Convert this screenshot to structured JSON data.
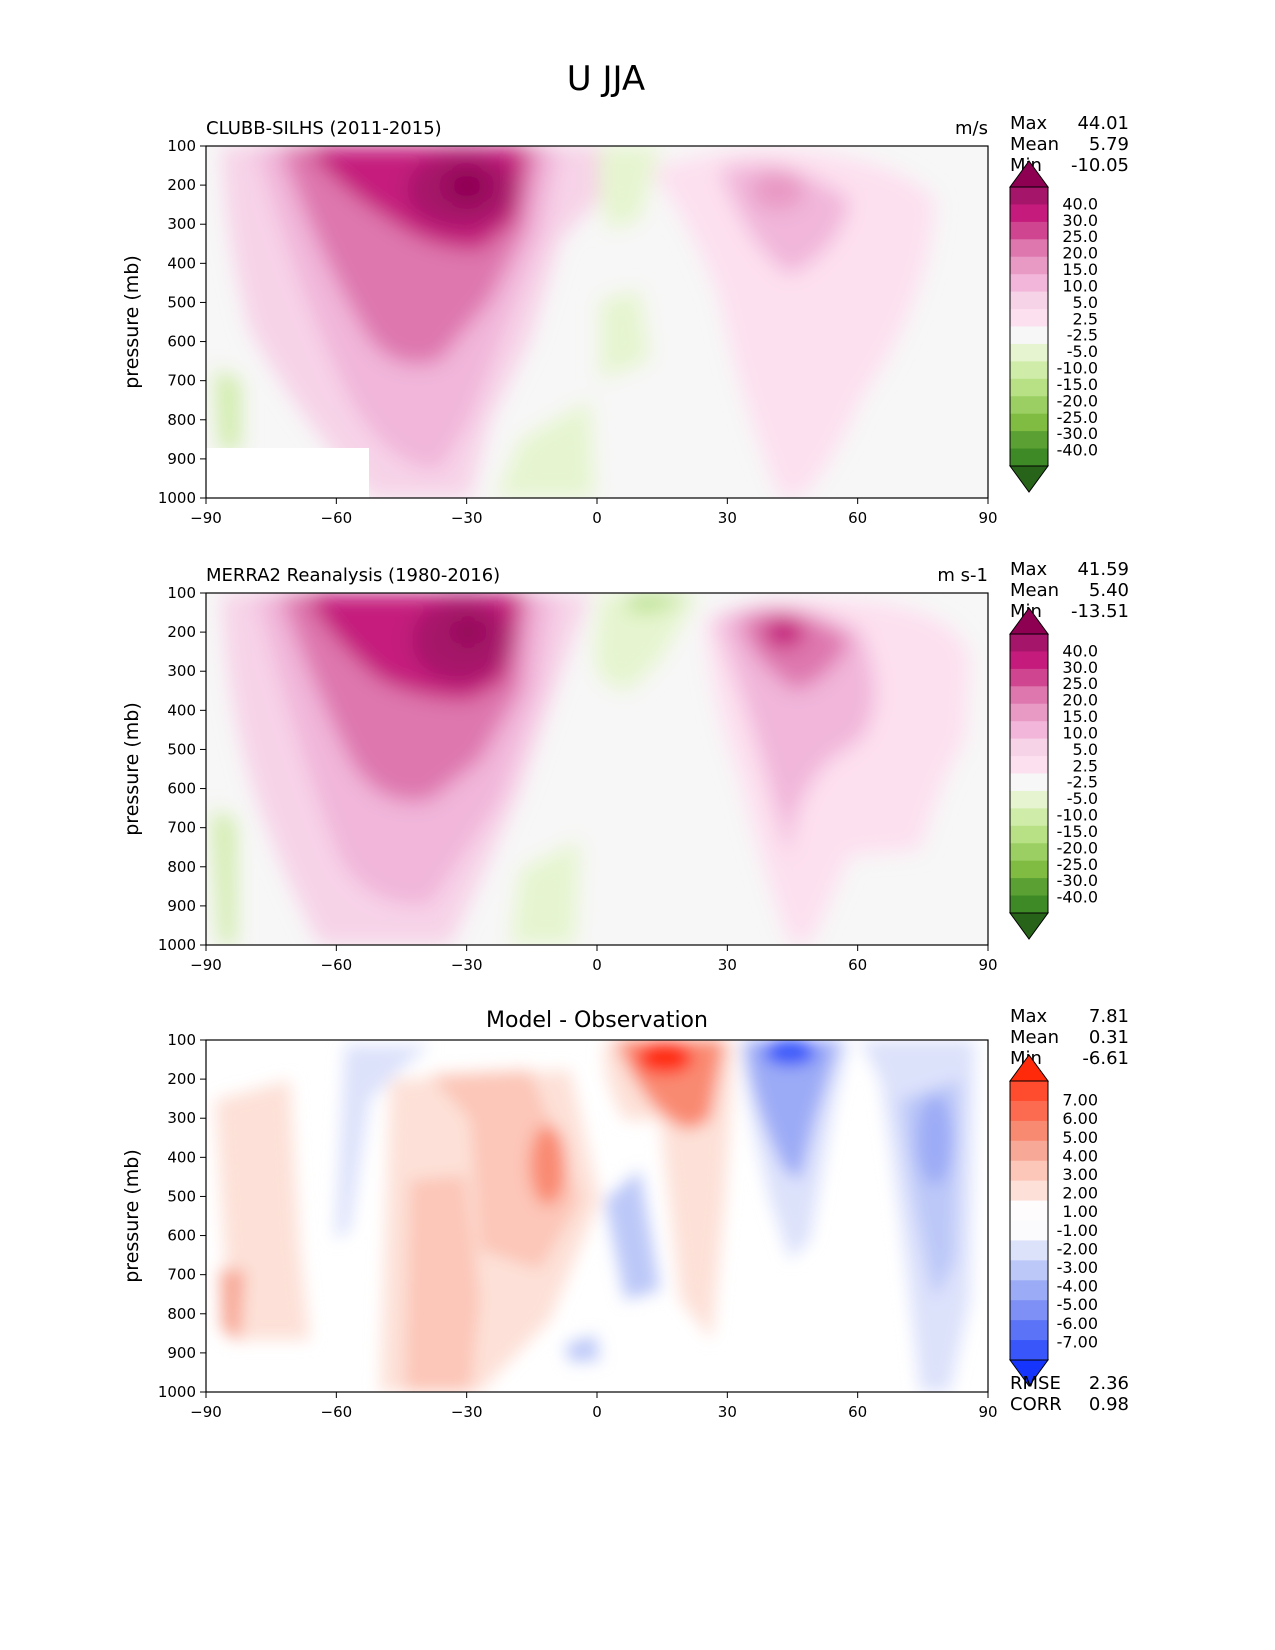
{
  "figure": {
    "title": "U JJA"
  },
  "chart_data": [
    {
      "type": "heatmap",
      "title": "CLUBB-SILHS (2011-2015)",
      "units": "m/s",
      "ylabel": "pressure (mb)",
      "xlabel": "",
      "x_ticks": [
        "−90",
        "−60",
        "−30",
        "0",
        "30",
        "60",
        "90"
      ],
      "y_ticks": [
        "100",
        "200",
        "300",
        "400",
        "500",
        "600",
        "700",
        "800",
        "900",
        "1000"
      ],
      "xlim": [
        -90,
        90
      ],
      "ylim": [
        1000,
        100
      ],
      "stats": [
        {
          "label": "Max",
          "value": "44.01"
        },
        {
          "label": "Mean",
          "value": "5.79"
        },
        {
          "label": "Min",
          "value": "-10.05"
        }
      ],
      "colorbar_labels": [
        "40.0",
        "30.0",
        "25.0",
        "20.0",
        "15.0",
        "10.0",
        "5.0",
        "2.5",
        "-2.5",
        "-5.0",
        "-10.0",
        "-15.0",
        "-20.0",
        "-25.0",
        "-30.0",
        "-40.0"
      ],
      "colorbar_colors": [
        "#8e0152",
        "#a51569",
        "#c51b7d",
        "#d0458f",
        "#de77ae",
        "#e899c4",
        "#f1b6da",
        "#f7d3e8",
        "#fde0ef",
        "#f7f7f7",
        "#e6f5d0",
        "#cfeca8",
        "#b8e186",
        "#9bcf63",
        "#7fbc41",
        "#5aa032",
        "#3d8a26",
        "#276419"
      ],
      "features": [
        {
          "lat": -38,
          "p": 430,
          "value": 12
        },
        {
          "lat": -34,
          "p": 290,
          "value": 25
        },
        {
          "lat": -30,
          "p": 200,
          "value": 40
        },
        {
          "lat": 43,
          "p": 230,
          "value": 12
        },
        {
          "lat": 8,
          "p": 380,
          "value": -5
        },
        {
          "lat": -6,
          "p": 900,
          "value": -5
        }
      ]
    },
    {
      "type": "heatmap",
      "title": "MERRA2 Reanalysis (1980-2016)",
      "units": "m s-1",
      "ylabel": "pressure (mb)",
      "xlabel": "",
      "x_ticks": [
        "−90",
        "−60",
        "−30",
        "0",
        "30",
        "60",
        "90"
      ],
      "y_ticks": [
        "100",
        "200",
        "300",
        "400",
        "500",
        "600",
        "700",
        "800",
        "900",
        "1000"
      ],
      "xlim": [
        -90,
        90
      ],
      "ylim": [
        1000,
        100
      ],
      "stats": [
        {
          "label": "Max",
          "value": "41.59"
        },
        {
          "label": "Mean",
          "value": "5.40"
        },
        {
          "label": "Min",
          "value": "-13.51"
        }
      ],
      "colorbar_labels": [
        "40.0",
        "30.0",
        "25.0",
        "20.0",
        "15.0",
        "10.0",
        "5.0",
        "2.5",
        "-2.5",
        "-5.0",
        "-10.0",
        "-15.0",
        "-20.0",
        "-25.0",
        "-30.0",
        "-40.0"
      ],
      "colorbar_colors": [
        "#8e0152",
        "#a51569",
        "#c51b7d",
        "#d0458f",
        "#de77ae",
        "#e899c4",
        "#f1b6da",
        "#f7d3e8",
        "#fde0ef",
        "#f7f7f7",
        "#e6f5d0",
        "#cfeca8",
        "#b8e186",
        "#9bcf63",
        "#7fbc41",
        "#5aa032",
        "#3d8a26",
        "#276419"
      ],
      "features": [
        {
          "lat": -38,
          "p": 450,
          "value": 12
        },
        {
          "lat": -32,
          "p": 290,
          "value": 25
        },
        {
          "lat": -30,
          "p": 200,
          "value": 40
        },
        {
          "lat": 43,
          "p": 220,
          "value": 15
        },
        {
          "lat": 5,
          "p": 300,
          "value": -5
        },
        {
          "lat": -6,
          "p": 880,
          "value": -5
        }
      ]
    },
    {
      "type": "heatmap",
      "title": "Model - Observation",
      "units": "",
      "ylabel": "pressure (mb)",
      "xlabel": "",
      "x_ticks": [
        "−90",
        "−60",
        "−30",
        "0",
        "30",
        "60",
        "90"
      ],
      "y_ticks": [
        "100",
        "200",
        "300",
        "400",
        "500",
        "600",
        "700",
        "800",
        "900",
        "1000"
      ],
      "xlim": [
        -90,
        90
      ],
      "ylim": [
        1000,
        100
      ],
      "stats": [
        {
          "label": "Max",
          "value": "7.81"
        },
        {
          "label": "Mean",
          "value": "0.31"
        },
        {
          "label": "Min",
          "value": "-6.61"
        }
      ],
      "colorbar_labels": [
        "7.00",
        "6.00",
        "5.00",
        "4.00",
        "3.00",
        "2.00",
        "1.00",
        "-1.00",
        "-2.00",
        "-3.00",
        "-4.00",
        "-5.00",
        "-6.00",
        "-7.00"
      ],
      "colorbar_colors": [
        "#ff2a0a",
        "#ff4b2e",
        "#fc6a4f",
        "#f98a72",
        "#f7a896",
        "#fcc6b8",
        "#fde1d8",
        "#fefcfc",
        "#fbfbfe",
        "#dde2fb",
        "#bcc8f8",
        "#9cabf6",
        "#7e90f5",
        "#5b73f7",
        "#3956fa",
        "#1535fd"
      ],
      "features": [
        {
          "lat": -30,
          "p": 700,
          "value": 3
        },
        {
          "lat": -15,
          "p": 430,
          "value": 4
        },
        {
          "lat": 18,
          "p": 160,
          "value": 7
        },
        {
          "lat": 45,
          "p": 150,
          "value": -6
        },
        {
          "lat": 78,
          "p": 380,
          "value": -3
        },
        {
          "lat": 8,
          "p": 600,
          "value": -3
        }
      ],
      "metrics": [
        {
          "label": "RMSE",
          "value": "2.36"
        },
        {
          "label": "CORR",
          "value": "0.98"
        }
      ]
    }
  ]
}
